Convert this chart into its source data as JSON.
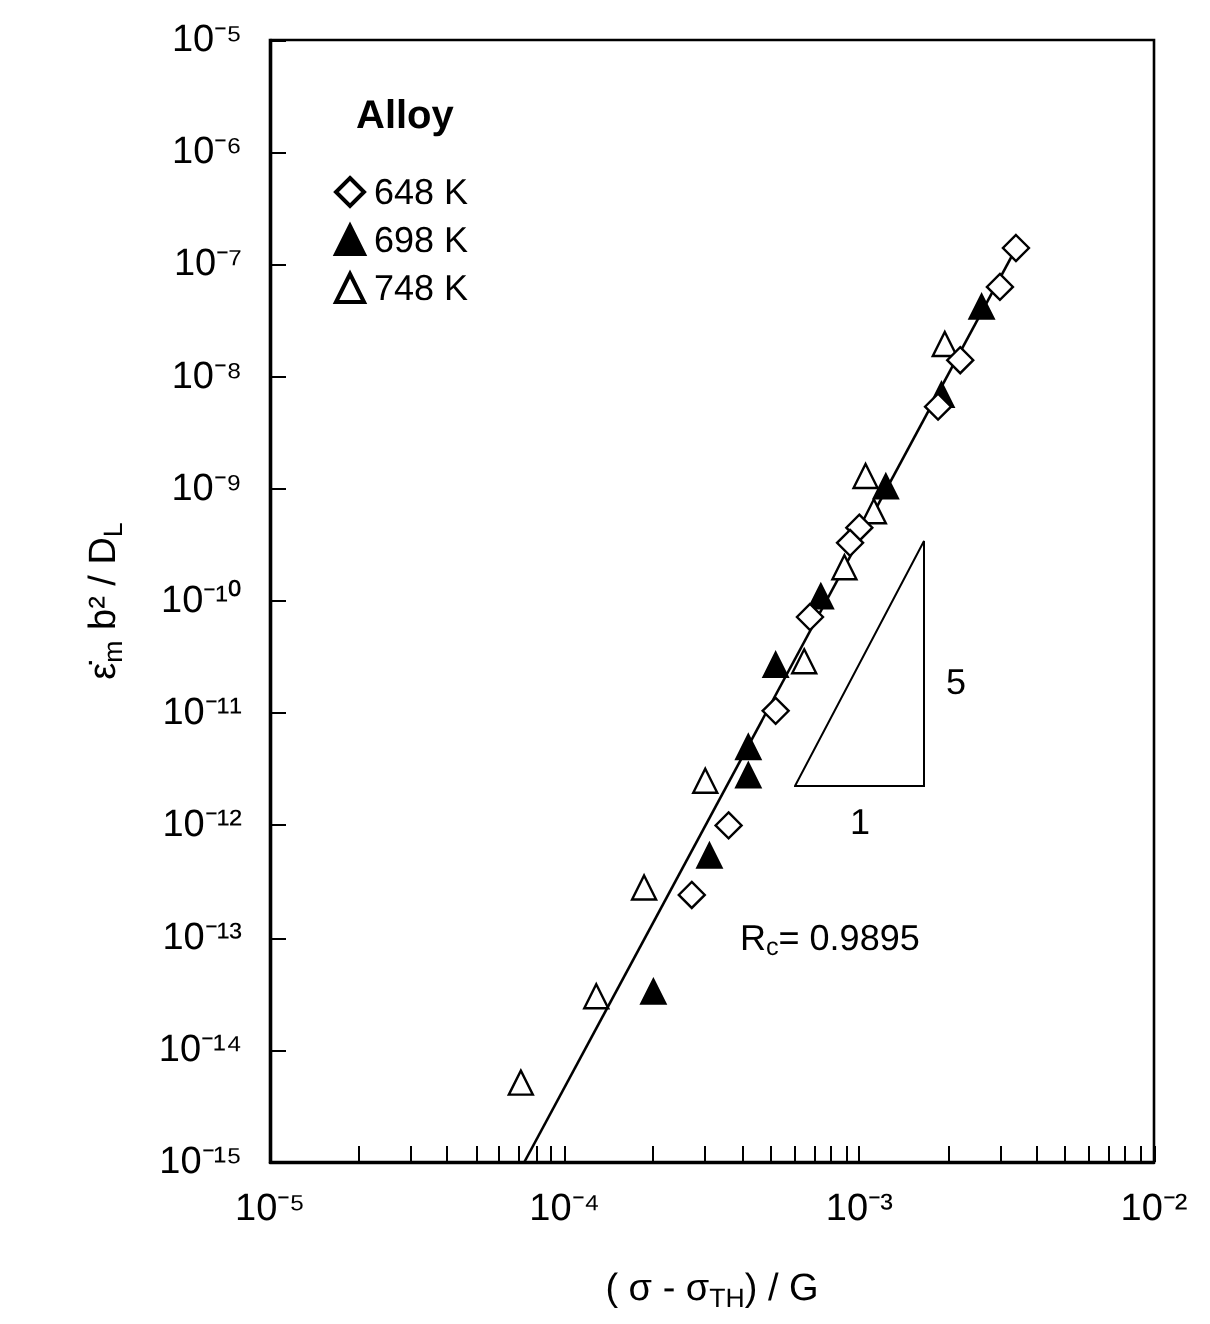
{
  "chart_data": {
    "type": "scatter",
    "xlabel": "( σ - σ$_{TH}$) / G",
    "ylabel": "ε̇$_{m}$ b² / D$_{L}$",
    "legend_title": "Alloy",
    "log": "xy",
    "grid": false,
    "legend": "top left",
    "xlim": [
      1e-05,
      0.01
    ],
    "ylim": [
      1e-15,
      1e-05
    ],
    "xticks": [
      {
        "value": 1e-05,
        "label": "10⁻⁵"
      },
      {
        "value": 2e-05,
        "label": null
      },
      {
        "value": 3e-05,
        "label": null
      },
      {
        "value": 4e-05,
        "label": null
      },
      {
        "value": 5e-05,
        "label": null
      },
      {
        "value": 6e-05,
        "label": null
      },
      {
        "value": 7e-05,
        "label": null
      },
      {
        "value": 8e-05,
        "label": null
      },
      {
        "value": 9e-05,
        "label": null
      },
      {
        "value": 0.0001,
        "label": "10⁻⁴"
      },
      {
        "value": 0.0002,
        "label": null
      },
      {
        "value": 0.0003,
        "label": null
      },
      {
        "value": 0.0004,
        "label": null
      },
      {
        "value": 0.0005,
        "label": null
      },
      {
        "value": 0.0006,
        "label": null
      },
      {
        "value": 0.0007,
        "label": null
      },
      {
        "value": 0.0008,
        "label": null
      },
      {
        "value": 0.0009,
        "label": null
      },
      {
        "value": 0.001,
        "label": "10⁻³"
      },
      {
        "value": 0.002,
        "label": null
      },
      {
        "value": 0.003,
        "label": null
      },
      {
        "value": 0.004,
        "label": null
      },
      {
        "value": 0.005,
        "label": null
      },
      {
        "value": 0.006,
        "label": null
      },
      {
        "value": 0.007,
        "label": null
      },
      {
        "value": 0.008,
        "label": null
      },
      {
        "value": 0.009,
        "label": null
      },
      {
        "value": 0.01,
        "label": "10⁻²"
      }
    ],
    "yticks": [
      {
        "value": 1e-15,
        "label": "10⁻¹⁵"
      },
      {
        "value": 1e-14,
        "label": "10⁻¹⁴"
      },
      {
        "value": 1e-13,
        "label": "10⁻¹³"
      },
      {
        "value": 1e-12,
        "label": "10⁻¹²"
      },
      {
        "value": 1e-11,
        "label": "10⁻¹¹"
      },
      {
        "value": 1e-10,
        "label": "10⁻¹⁰"
      },
      {
        "value": 1e-09,
        "label": "10⁻⁹"
      },
      {
        "value": 1e-08,
        "label": "10⁻⁸"
      },
      {
        "value": 1e-07,
        "label": "10⁻⁷"
      },
      {
        "value": 1e-06,
        "label": "10⁻⁶"
      },
      {
        "value": 1e-05,
        "label": "10⁻⁵"
      }
    ],
    "annotations": [
      "R$_{c}$= 0.9895",
      "5",
      "1"
    ],
    "series": [
      {
        "name": "648 K",
        "color": "#000000",
        "marker": "diamond",
        "x": [
          0.0034,
          0.003,
          0.0022,
          0.00185,
          0.001,
          0.00093,
          0.00068,
          0.00052,
          0.00036,
          0.00027
        ],
        "values": [
          1.4e-07,
          6.3e-08,
          1.4e-08,
          5.4e-09,
          4.5e-10,
          3.3e-10,
          7.2e-11,
          1.05e-11,
          1e-12,
          2.4e-13
        ]
      },
      {
        "name": "698 K",
        "color": "#000000",
        "marker": "triangle",
        "x": [
          0.0026,
          0.0019,
          0.00123,
          0.00074,
          0.00052,
          0.00042,
          0.00042,
          0.00031,
          0.0002
        ],
        "values": [
          4.2e-08,
          6.9e-09,
          1.05e-09,
          1.1e-10,
          2.7e-11,
          5e-12,
          2.8e-12,
          5.4e-13,
          3.3e-14
        ]
      },
      {
        "name": "748 K",
        "color": "#000000",
        "marker": "triangle",
        "x": [
          0.00195,
          0.00105,
          0.00112,
          0.00089,
          0.00065,
          0.0003,
          0.000186,
          0.000128,
          7.1e-05
        ],
        "values": [
          1.95e-08,
          1.3e-09,
          6.3e-10,
          2e-10,
          2.9e-11,
          2.5e-12,
          2.8e-13,
          3e-14,
          5.1e-15
        ]
      },
      {
        "type": "line",
        "color": "#000000",
        "line_style": "solid",
        "x": [
          7.3e-05,
          0.0035
        ],
        "values": [
          1e-15,
          1.6e-07
        ]
      }
    ]
  }
}
